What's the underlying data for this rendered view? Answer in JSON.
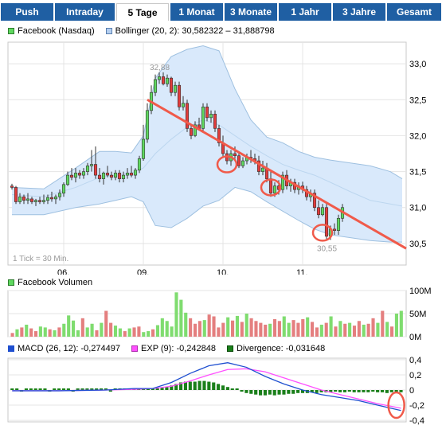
{
  "tabs": [
    {
      "label": "Push",
      "active": false
    },
    {
      "label": "Intraday",
      "active": false
    },
    {
      "label": "5 Tage",
      "active": true
    },
    {
      "label": "1 Monat",
      "active": false
    },
    {
      "label": "3 Monate",
      "active": false
    },
    {
      "label": "1 Jahr",
      "active": false
    },
    {
      "label": "3 Jahre",
      "active": false
    },
    {
      "label": "Gesamt",
      "active": false
    }
  ],
  "colors": {
    "up": "#5fd85f",
    "down": "#e23c3c",
    "band": "#d9e9fb",
    "band_line": "#9ec0e0",
    "mid_line": "#bcd6ef",
    "trend": "#f05a4a",
    "macd": "#1f4fd0",
    "exp": "#ff4fff",
    "divergence": "#1a7f1a",
    "tab_bg": "#1f5fa3"
  },
  "chart_data": [
    {
      "type": "candlestick",
      "legend": [
        {
          "label": "Facebook (Nasdaq)",
          "color": "#5fd85f"
        },
        {
          "label": "Bollinger (20, 2): 30,582322 – 31,888798",
          "color": "#b5cff0"
        }
      ],
      "y_ticks": [
        "33,0",
        "32,5",
        "32,0",
        "31,5",
        "31,0",
        "30,5"
      ],
      "ylim": [
        30.2,
        33.3
      ],
      "x_ticks": [
        {
          "label": "06.",
          "x": 13
        },
        {
          "label": "09.",
          "x": 33
        },
        {
          "label": "10.",
          "x": 53
        },
        {
          "label": "11.",
          "x": 73
        }
      ],
      "xlim": [
        -1,
        99
      ],
      "high_label": "32,88",
      "low_label": "30,55",
      "note": "1 Tick = 30 Min.",
      "candles": [
        [
          31.3,
          31.33,
          31.25,
          31.28
        ],
        [
          31.28,
          31.3,
          31.05,
          31.08
        ],
        [
          31.08,
          31.2,
          31.05,
          31.15
        ],
        [
          31.15,
          31.18,
          31.05,
          31.1
        ],
        [
          31.1,
          31.2,
          31.05,
          31.12
        ],
        [
          31.12,
          31.15,
          31.05,
          31.08
        ],
        [
          31.08,
          31.12,
          31.02,
          31.1
        ],
        [
          31.1,
          31.15,
          31.05,
          31.08
        ],
        [
          31.08,
          31.18,
          31.05,
          31.1
        ],
        [
          31.1,
          31.18,
          31.05,
          31.14
        ],
        [
          31.14,
          31.22,
          31.08,
          31.12
        ],
        [
          31.12,
          31.18,
          31.05,
          31.15
        ],
        [
          31.15,
          31.25,
          31.1,
          31.2
        ],
        [
          31.2,
          31.35,
          31.15,
          31.32
        ],
        [
          31.32,
          31.5,
          31.3,
          31.45
        ],
        [
          31.45,
          31.55,
          31.38,
          31.42
        ],
        [
          31.42,
          31.55,
          31.35,
          31.48
        ],
        [
          31.48,
          31.52,
          31.4,
          31.45
        ],
        [
          31.45,
          31.55,
          31.4,
          31.5
        ],
        [
          31.5,
          31.62,
          31.45,
          31.58
        ],
        [
          31.58,
          31.8,
          31.5,
          31.6
        ],
        [
          31.6,
          31.85,
          31.4,
          31.45
        ],
        [
          31.45,
          31.55,
          31.35,
          31.4
        ],
        [
          31.4,
          31.5,
          31.32,
          31.48
        ],
        [
          31.48,
          31.58,
          31.42,
          31.45
        ],
        [
          31.45,
          31.5,
          31.38,
          31.42
        ],
        [
          31.42,
          31.52,
          31.38,
          31.48
        ],
        [
          31.48,
          31.52,
          31.35,
          31.4
        ],
        [
          31.4,
          31.5,
          31.35,
          31.45
        ],
        [
          31.45,
          31.55,
          31.4,
          31.48
        ],
        [
          31.48,
          31.58,
          31.42,
          31.45
        ],
        [
          31.45,
          31.55,
          31.4,
          31.52
        ],
        [
          31.52,
          31.72,
          31.48,
          31.68
        ],
        [
          31.68,
          32.15,
          31.65,
          31.95
        ],
        [
          31.95,
          32.45,
          31.9,
          32.35
        ],
        [
          32.35,
          32.7,
          32.3,
          32.6
        ],
        [
          32.6,
          32.85,
          32.55,
          32.78
        ],
        [
          32.78,
          32.88,
          32.72,
          32.82
        ],
        [
          32.82,
          32.88,
          32.7,
          32.72
        ],
        [
          32.72,
          32.85,
          32.68,
          32.8
        ],
        [
          32.8,
          32.82,
          32.55,
          32.6
        ],
        [
          32.6,
          32.75,
          32.55,
          32.7
        ],
        [
          32.7,
          32.75,
          32.35,
          32.4
        ],
        [
          32.4,
          32.55,
          32.35,
          32.45
        ],
        [
          32.45,
          32.5,
          32.05,
          32.1
        ],
        [
          32.1,
          32.15,
          31.95,
          32.0
        ],
        [
          32.0,
          32.2,
          31.98,
          32.15
        ],
        [
          32.15,
          32.25,
          32.08,
          32.1
        ],
        [
          32.1,
          32.45,
          32.05,
          32.4
        ],
        [
          32.4,
          32.45,
          32.2,
          32.25
        ],
        [
          32.25,
          32.35,
          32.18,
          32.3
        ],
        [
          32.3,
          32.35,
          32.05,
          32.1
        ],
        [
          32.1,
          32.15,
          31.85,
          31.9
        ],
        [
          31.9,
          32.0,
          31.7,
          31.75
        ],
        [
          31.75,
          31.8,
          31.6,
          31.65
        ],
        [
          31.65,
          31.8,
          31.58,
          31.75
        ],
        [
          31.75,
          31.85,
          31.68,
          31.72
        ],
        [
          31.72,
          31.78,
          31.55,
          31.58
        ],
        [
          31.58,
          31.7,
          31.55,
          31.65
        ],
        [
          31.65,
          31.75,
          31.6,
          31.7
        ],
        [
          31.7,
          31.8,
          31.62,
          31.68
        ],
        [
          31.68,
          31.75,
          31.6,
          31.65
        ],
        [
          31.65,
          31.72,
          31.45,
          31.5
        ],
        [
          31.5,
          31.65,
          31.45,
          31.55
        ],
        [
          31.55,
          31.62,
          31.35,
          31.4
        ],
        [
          31.4,
          31.5,
          31.15,
          31.2
        ],
        [
          31.2,
          31.35,
          31.15,
          31.3
        ],
        [
          31.3,
          31.38,
          31.18,
          31.25
        ],
        [
          31.25,
          31.5,
          31.2,
          31.45
        ],
        [
          31.45,
          31.52,
          31.25,
          31.3
        ],
        [
          31.3,
          31.4,
          31.22,
          31.35
        ],
        [
          31.35,
          31.4,
          31.2,
          31.25
        ],
        [
          31.25,
          31.35,
          31.18,
          31.3
        ],
        [
          31.3,
          31.36,
          31.2,
          31.25
        ],
        [
          31.25,
          31.3,
          31.1,
          31.15
        ],
        [
          31.15,
          31.25,
          31.08,
          31.2
        ],
        [
          31.2,
          31.25,
          30.95,
          31.0
        ],
        [
          31.0,
          31.1,
          30.85,
          30.9
        ],
        [
          30.9,
          31.05,
          30.88,
          31.0
        ],
        [
          31.0,
          31.05,
          30.55,
          30.6
        ],
        [
          30.6,
          30.75,
          30.55,
          30.7
        ],
        [
          30.7,
          30.78,
          30.62,
          30.68
        ],
        [
          30.68,
          30.9,
          30.62,
          30.85
        ],
        [
          30.85,
          31.05,
          30.8,
          31.0
        ]
      ],
      "bollinger": {
        "x": [
          0,
          8,
          16,
          22,
          26,
          30,
          33,
          36,
          40,
          44,
          48,
          52,
          56,
          60,
          64,
          68,
          72,
          76,
          80,
          85,
          90,
          95,
          98
        ],
        "upper": [
          31.28,
          31.26,
          31.55,
          31.78,
          31.78,
          31.76,
          32.0,
          32.8,
          33.1,
          33.2,
          33.25,
          33.18,
          32.65,
          32.22,
          31.98,
          31.9,
          31.78,
          31.7,
          31.66,
          31.62,
          31.58,
          31.5,
          31.4
        ],
        "mid": [
          31.18,
          31.15,
          31.28,
          31.42,
          31.45,
          31.48,
          31.55,
          31.75,
          31.95,
          32.12,
          32.22,
          32.15,
          32.0,
          31.85,
          31.72,
          31.6,
          31.52,
          31.45,
          31.35,
          31.22,
          31.1,
          31.05,
          31.02
        ],
        "lower": [
          30.9,
          30.9,
          31.0,
          31.05,
          31.1,
          31.15,
          31.08,
          30.75,
          30.72,
          30.85,
          31.02,
          31.1,
          31.28,
          31.22,
          31.08,
          30.95,
          30.82,
          30.7,
          30.62,
          30.58,
          30.54,
          30.52,
          30.52
        ]
      },
      "trendline": {
        "x": [
          34,
          99
        ],
        "y": [
          32.5,
          30.43
        ]
      },
      "highlight_circles": [
        {
          "x": 54,
          "y": 31.6
        },
        {
          "x": 65,
          "y": 31.28
        },
        {
          "x": 78,
          "y": 30.65
        }
      ]
    },
    {
      "type": "bar",
      "legend": [
        {
          "label": "Facebook Volumen",
          "color": "#5fd85f"
        }
      ],
      "y_ticks": [
        "100M",
        "50M",
        "0M"
      ],
      "ylim": [
        0,
        100
      ],
      "up": [
        false,
        true,
        false,
        true,
        false,
        false,
        true,
        true,
        false,
        true,
        false,
        true,
        true,
        true,
        true,
        false,
        true,
        true,
        false,
        true,
        false,
        false,
        true,
        true,
        false,
        true,
        false,
        false,
        true,
        true,
        false,
        true,
        true,
        true,
        true,
        true,
        true,
        true,
        false,
        false,
        false,
        true,
        false,
        false,
        false,
        false,
        true,
        false,
        true,
        false,
        true,
        false,
        false,
        false,
        false,
        true,
        false,
        false,
        true,
        true,
        false,
        false,
        false,
        true,
        false,
        false,
        true,
        false,
        true,
        false,
        true,
        false,
        true,
        false,
        false,
        true,
        false,
        false,
        true,
        false,
        true,
        false,
        true,
        true
      ],
      "values": [
        8,
        16,
        20,
        26,
        18,
        12,
        22,
        20,
        16,
        14,
        20,
        28,
        46,
        35,
        14,
        40,
        20,
        28,
        14,
        30,
        56,
        30,
        24,
        18,
        12,
        18,
        20,
        22,
        10,
        12,
        16,
        25,
        40,
        34,
        22,
        96,
        80,
        52,
        40,
        28,
        34,
        36,
        48,
        44,
        20,
        30,
        42,
        35,
        45,
        32,
        50,
        40,
        34,
        30,
        26,
        28,
        38,
        34,
        44,
        30,
        36,
        30,
        38,
        42,
        32,
        20,
        26,
        30,
        44,
        22,
        34,
        28,
        30,
        24,
        34,
        26,
        28,
        40,
        30,
        56,
        32,
        22,
        50,
        56
      ]
    },
    {
      "type": "line",
      "legend": [
        {
          "label": "MACD (26, 12): -0,274497",
          "color": "#1f4fd0"
        },
        {
          "label": "EXP (9): -0,242848",
          "color": "#ff4fff"
        },
        {
          "label": "Divergence: -0,031648",
          "color": "#1a7f1a"
        }
      ],
      "y_ticks": [
        "0,4",
        "0,2",
        "0",
        "-0,2",
        "-0,4"
      ],
      "ylim": [
        -0.42,
        0.42
      ],
      "macd": {
        "x": [
          0,
          10,
          20,
          26,
          30,
          34,
          38,
          42,
          46,
          50,
          54,
          58,
          62,
          66,
          70,
          74,
          78,
          83
        ],
        "y": [
          -0.01,
          -0.01,
          0.0,
          0.02,
          0.02,
          0.1,
          0.22,
          0.32,
          0.36,
          0.3,
          0.18,
          0.08,
          0.0,
          -0.06,
          -0.1,
          -0.14,
          -0.2,
          -0.27
        ]
      },
      "exp": {
        "x": [
          0,
          10,
          20,
          26,
          30,
          34,
          38,
          42,
          46,
          50,
          54,
          58,
          62,
          66,
          70,
          74,
          78,
          83
        ],
        "y": [
          -0.01,
          -0.01,
          0.0,
          0.01,
          0.02,
          0.05,
          0.12,
          0.2,
          0.27,
          0.28,
          0.24,
          0.16,
          0.08,
          0.0,
          -0.06,
          -0.12,
          -0.18,
          -0.24
        ]
      },
      "divergence": [
        0.0,
        0.0,
        -0.01,
        0.0,
        0.0,
        0.0,
        0.01,
        0.0,
        -0.01,
        0.0,
        0.0,
        0.01,
        0.0,
        -0.01,
        0.0,
        0.0,
        0.0,
        0.01,
        0.01,
        0.0,
        0.0,
        -0.01,
        0.0,
        0.0,
        0.0,
        0.0,
        0.01,
        0.0,
        0.0,
        0.01,
        0.01,
        0.02,
        0.03,
        0.04,
        0.06,
        0.08,
        0.1,
        0.11,
        0.11,
        0.11,
        0.12,
        0.12,
        0.11,
        0.1,
        0.08,
        0.06,
        0.04,
        0.02,
        0.0,
        -0.02,
        -0.04,
        -0.05,
        -0.06,
        -0.07,
        -0.07,
        -0.06,
        -0.07,
        -0.06,
        -0.06,
        -0.05,
        -0.05,
        -0.04,
        -0.04,
        -0.04,
        -0.03,
        -0.04,
        -0.03,
        -0.03,
        -0.03,
        -0.02,
        -0.03,
        -0.03,
        -0.02,
        -0.03,
        -0.03,
        -0.03,
        -0.03,
        -0.02,
        -0.03,
        -0.03,
        -0.04,
        -0.03,
        -0.03,
        -0.03
      ],
      "highlight_circle": {
        "x": 82,
        "y": -0.2
      }
    }
  ]
}
